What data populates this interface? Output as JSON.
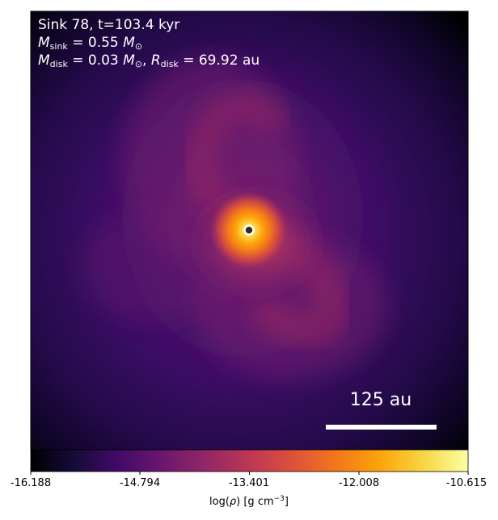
{
  "panel": {
    "sink_line": "Sink 78, t=103.4 kyr",
    "mass_sink_value": "0.55",
    "mass_disk_value": "0.03",
    "radius_disk_value": "69.92",
    "unit_au": "au",
    "sub_sink": "sink",
    "sub_disk": "disk",
    "symbol_M": "M",
    "symbol_R": "R",
    "symbol_Msun": "M",
    "sun_sub": "⊙"
  },
  "scale_bar": {
    "label": "125 au"
  },
  "colorbar": {
    "colormap": "inferno",
    "ticks": [
      "-16.188",
      "-14.794",
      "-13.401",
      "-12.008",
      "-10.615"
    ],
    "label_prefix": "log(",
    "label_rho": "ρ",
    "label_suffix": ") [g cm",
    "label_exp": "−3",
    "label_close": "]"
  },
  "colors": {
    "frame": "#000000",
    "sink_ring": "#ffffff",
    "sink_center": "#3a2a10",
    "background_density": "#2b0b55"
  }
}
